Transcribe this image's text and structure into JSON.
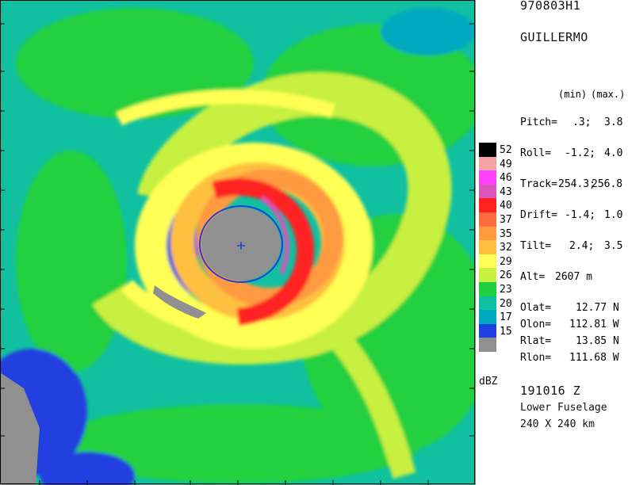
{
  "header": {
    "flight_id": "970803H1",
    "storm_name": "GUILLERMO"
  },
  "stats": {
    "min_label": "(min)",
    "max_label": "(max.)",
    "pitch": {
      "label": "Pitch=",
      "min": ".3;",
      "max": "3.8"
    },
    "roll": {
      "label": "Roll=",
      "min": "-1.2;",
      "max": "4.0"
    },
    "track": {
      "label": "Track=",
      "min": "254.3;",
      "max": "256.8"
    },
    "drift": {
      "label": "Drift=",
      "min": "-1.4;",
      "max": "1.0"
    },
    "tilt": {
      "label": "Tilt=",
      "min": "2.4;",
      "max": "3.5"
    },
    "alt": {
      "label": "Alt=",
      "value": "2607 m"
    },
    "olat": {
      "label": "Olat=",
      "value": "12.77 N"
    },
    "olon": {
      "label": "Olon=",
      "value": "112.81 W"
    },
    "rlat": {
      "label": "Rlat=",
      "value": "13.85 N"
    },
    "rlon": {
      "label": "Rlon=",
      "value": "111.68 W"
    }
  },
  "footer": {
    "time": "191016 Z",
    "antenna": "Lower Fuselage",
    "domain_size": "240 X 240 km"
  },
  "legend": {
    "unit": "dBZ",
    "entries": [
      {
        "value": "52",
        "color": "#000000"
      },
      {
        "value": "49",
        "color": "#f4a3a3"
      },
      {
        "value": "46",
        "color": "#ff40ff"
      },
      {
        "value": "43",
        "color": "#d857b8"
      },
      {
        "value": "40",
        "color": "#ff2020"
      },
      {
        "value": "37",
        "color": "#ff6a40"
      },
      {
        "value": "35",
        "color": "#ff9a40"
      },
      {
        "value": "32",
        "color": "#ffc040"
      },
      {
        "value": "29",
        "color": "#ffff55"
      },
      {
        "value": "26",
        "color": "#c8f040"
      },
      {
        "value": "23",
        "color": "#20d040"
      },
      {
        "value": "20",
        "color": "#10c0a0"
      },
      {
        "value": "17",
        "color": "#00a8c0"
      },
      {
        "value": "15",
        "color": "#2040e0"
      },
      {
        "value": "",
        "color": "#909090"
      }
    ]
  }
}
